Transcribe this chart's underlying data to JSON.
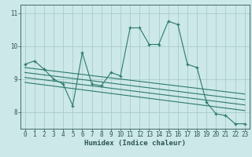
{
  "xlabel": "Humidex (Indice chaleur)",
  "background_color": "#cce8e8",
  "grid_color": "#aacccc",
  "line_color": "#2d7a6a",
  "xlim": [
    -0.5,
    23.5
  ],
  "ylim": [
    7.5,
    11.25
  ],
  "yticks": [
    8,
    9,
    10,
    11
  ],
  "xticks": [
    0,
    1,
    2,
    3,
    4,
    5,
    6,
    7,
    8,
    9,
    10,
    11,
    12,
    13,
    14,
    15,
    16,
    17,
    18,
    19,
    20,
    21,
    22,
    23
  ],
  "main_line_x": [
    0,
    1,
    2,
    3,
    4,
    5,
    6,
    7,
    8,
    9,
    10,
    11,
    12,
    13,
    14,
    15,
    16,
    17,
    18,
    19,
    20,
    21,
    22,
    23
  ],
  "main_line_y": [
    9.45,
    9.55,
    9.3,
    9.0,
    8.85,
    8.2,
    9.8,
    8.85,
    8.8,
    9.2,
    9.1,
    10.55,
    10.55,
    10.05,
    10.05,
    10.75,
    10.65,
    9.45,
    9.35,
    8.3,
    7.95,
    7.9,
    7.65,
    7.65
  ],
  "trend1_x": [
    0,
    23
  ],
  "trend1_y": [
    9.35,
    8.55
  ],
  "trend2_x": [
    0,
    23
  ],
  "trend2_y": [
    9.2,
    8.38
  ],
  "trend3_x": [
    0,
    23
  ],
  "trend3_y": [
    9.05,
    8.22
  ],
  "trend4_x": [
    0,
    23
  ],
  "trend4_y": [
    8.9,
    8.05
  ]
}
